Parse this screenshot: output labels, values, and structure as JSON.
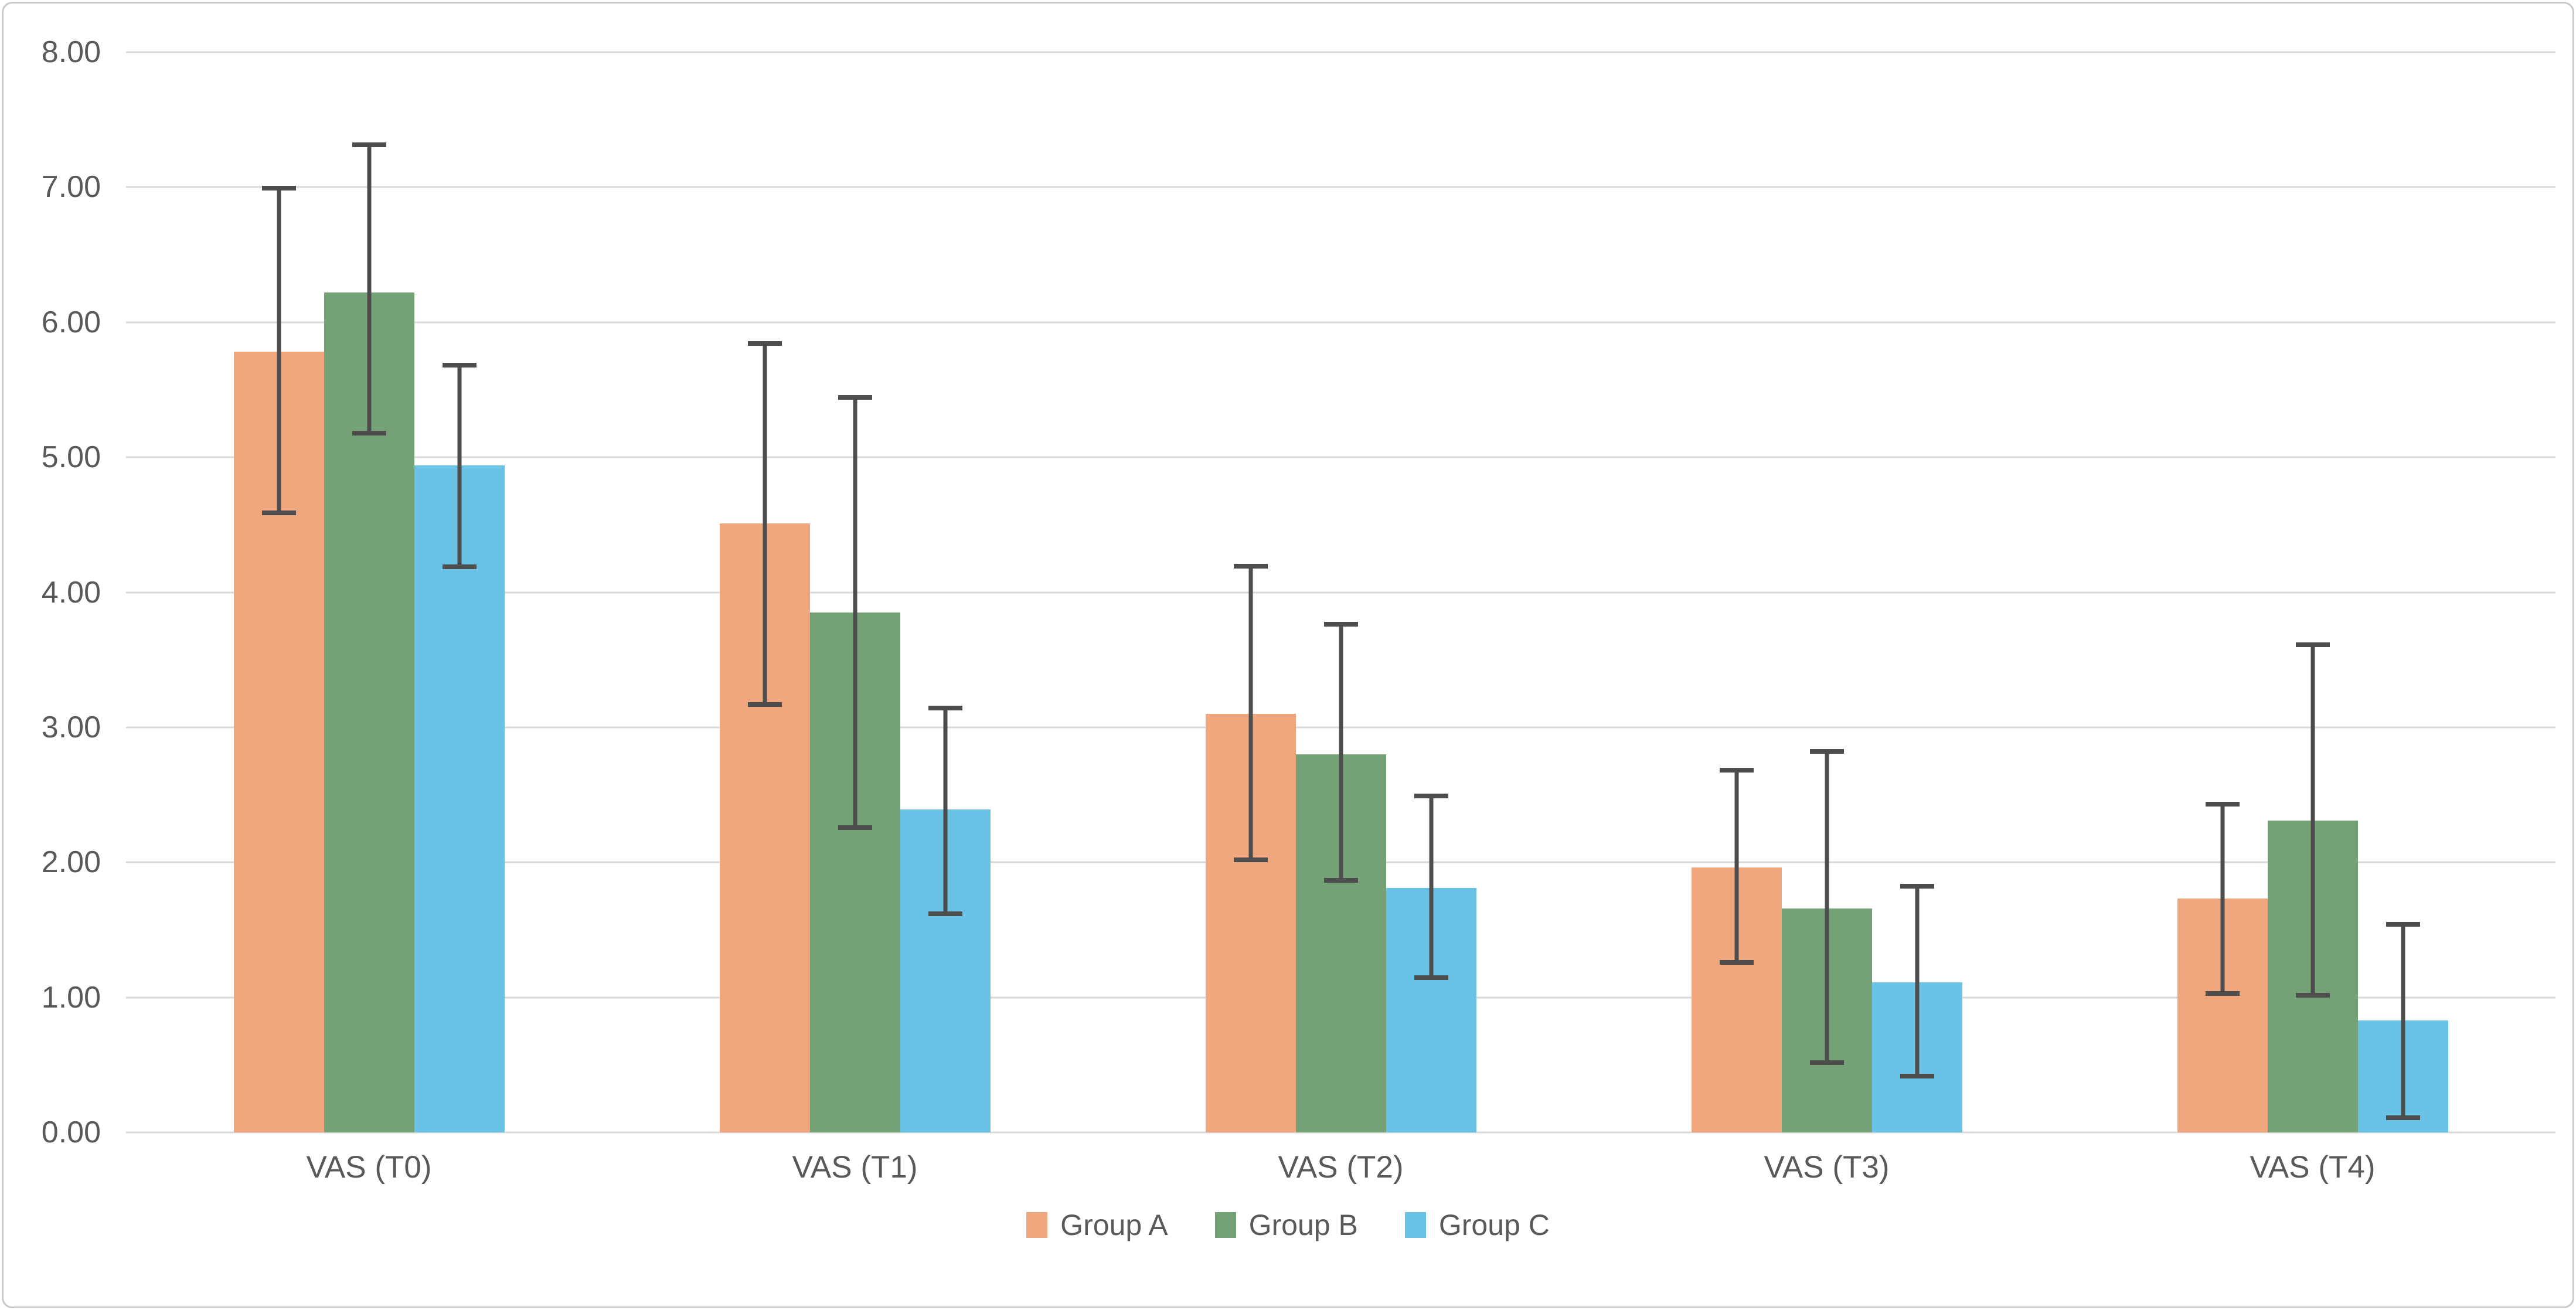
{
  "chart": {
    "background_color": "#ffffff",
    "frame_border_color": "#c9c9c9",
    "gridline_color": "#d9d9d9",
    "axis_text_color": "#595959",
    "error_bar_color": "#4d4d4d"
  },
  "chart_data": {
    "type": "bar",
    "title": "",
    "xlabel": "",
    "ylabel": "",
    "categories": [
      "VAS (T0)",
      "VAS (T1)",
      "VAS (T2)",
      "VAS (T3)",
      "VAS (T4)"
    ],
    "series": [
      {
        "name": "Group A",
        "color": "#f1a77e",
        "values": [
          5.78,
          4.51,
          3.1,
          1.96,
          1.73
        ],
        "error_low": [
          4.57,
          3.15,
          2.0,
          1.24,
          1.01
        ],
        "error_high": [
          7.01,
          5.86,
          4.21,
          2.7,
          2.45
        ]
      },
      {
        "name": "Group B",
        "color": "#74a176",
        "values": [
          6.22,
          3.85,
          2.8,
          1.66,
          2.31
        ],
        "error_low": [
          5.16,
          2.24,
          1.85,
          0.5,
          1.0
        ],
        "error_high": [
          7.33,
          5.46,
          3.78,
          2.84,
          3.63
        ]
      },
      {
        "name": "Group C",
        "color": "#6bc2e7",
        "values": [
          4.94,
          2.39,
          1.81,
          1.11,
          0.83
        ],
        "error_low": [
          4.17,
          1.6,
          1.13,
          0.4,
          0.09
        ],
        "error_high": [
          5.7,
          3.16,
          2.51,
          1.84,
          1.56
        ]
      }
    ],
    "ylim": [
      0,
      8
    ],
    "y_tick_step": 1,
    "y_tick_labels": [
      "0.00",
      "1.00",
      "2.00",
      "3.00",
      "4.00",
      "5.00",
      "6.00",
      "7.00",
      "8.00"
    ],
    "grid": true,
    "error_bars": true,
    "legend_position": "bottom-center"
  }
}
